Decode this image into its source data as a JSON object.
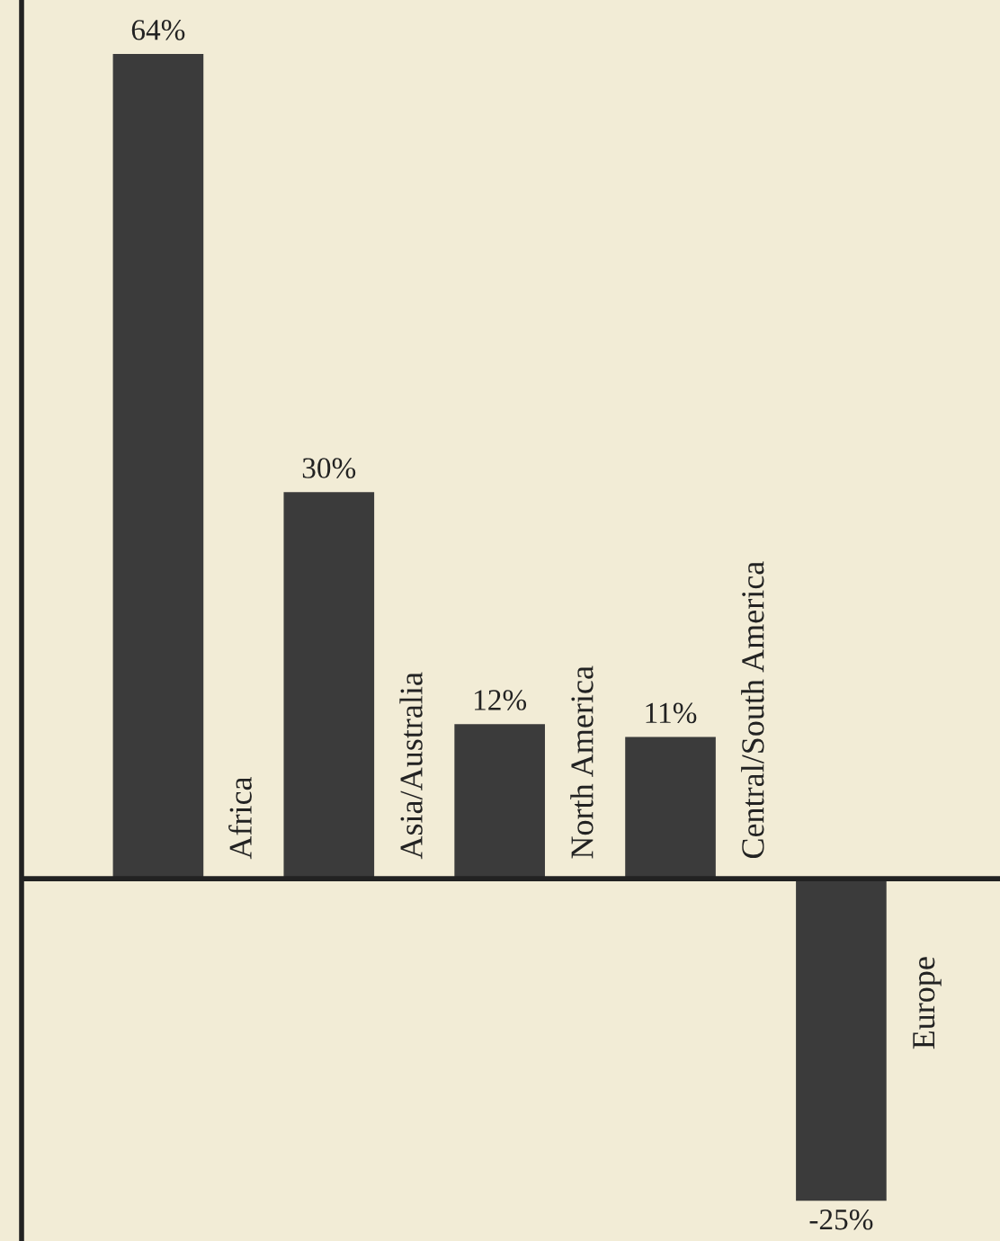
{
  "chart_data": {
    "type": "bar",
    "categories": [
      "Africa",
      "Asia/Australia",
      "North America",
      "Central/South America",
      "Europe"
    ],
    "values": [
      64,
      30,
      12,
      11,
      -25
    ],
    "value_labels": [
      "64%",
      "30%",
      "12%",
      "11%",
      "-25%"
    ],
    "color": "#3b3b3b"
  }
}
